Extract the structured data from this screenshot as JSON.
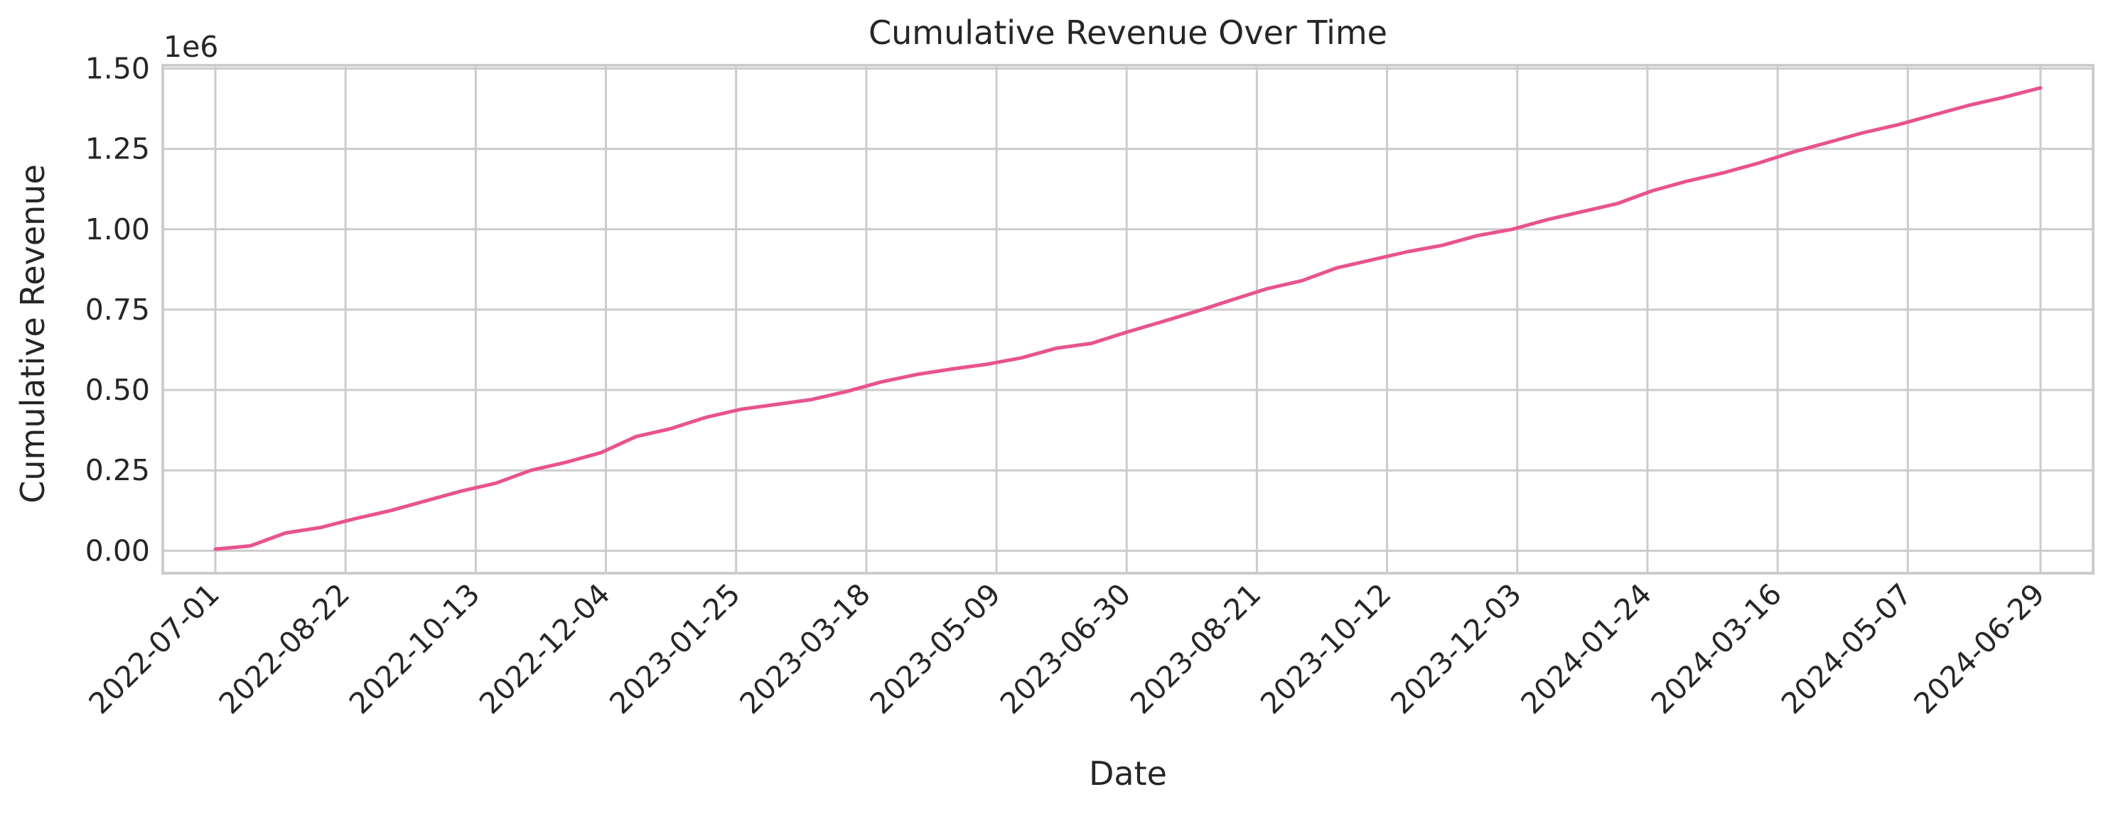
{
  "chart_data": {
    "type": "line",
    "title": "Cumulative Revenue Over Time",
    "xlabel": "Date",
    "ylabel": "Cumulative Revenue",
    "y_offset_label": "1e6",
    "y_unit_multiplier": 1000000,
    "x_tick_labels": [
      "2022-07-01",
      "2022-08-22",
      "2022-10-13",
      "2022-12-04",
      "2023-01-25",
      "2023-03-18",
      "2023-05-09",
      "2023-06-30",
      "2023-08-21",
      "2023-10-12",
      "2023-12-03",
      "2024-01-24",
      "2024-03-16",
      "2024-05-07",
      "2024-06-29"
    ],
    "y_ticks": [
      0,
      250000,
      500000,
      750000,
      1000000,
      1250000,
      1500000
    ],
    "y_tick_labels": [
      "0.00",
      "0.25",
      "0.50",
      "0.75",
      "1.00",
      "1.25",
      "1.50"
    ],
    "xlim": [
      "2022-06-10",
      "2024-07-20"
    ],
    "ylim": [
      -70000,
      1510000
    ],
    "grid": true,
    "line_color": "#e8538f",
    "series": [
      {
        "x": [
          "2022-07-01",
          "2022-07-15",
          "2022-07-29",
          "2022-08-12",
          "2022-08-26",
          "2022-09-09",
          "2022-09-23",
          "2022-10-07",
          "2022-10-21",
          "2022-11-04",
          "2022-11-18",
          "2022-12-02",
          "2022-12-16",
          "2022-12-30",
          "2023-01-13",
          "2023-01-27",
          "2023-02-10",
          "2023-02-24",
          "2023-03-10",
          "2023-03-24",
          "2023-04-07",
          "2023-04-21",
          "2023-05-05",
          "2023-05-19",
          "2023-06-02",
          "2023-06-16",
          "2023-06-30",
          "2023-07-14",
          "2023-07-28",
          "2023-08-11",
          "2023-08-25",
          "2023-09-08",
          "2023-09-22",
          "2023-10-06",
          "2023-10-20",
          "2023-11-03",
          "2023-11-17",
          "2023-12-01",
          "2023-12-15",
          "2023-12-29",
          "2024-01-12",
          "2024-01-26",
          "2024-02-09",
          "2024-02-23",
          "2024-03-08",
          "2024-03-22",
          "2024-04-05",
          "2024-04-19",
          "2024-05-03",
          "2024-05-17",
          "2024-05-31",
          "2024-06-14",
          "2024-06-29"
        ],
        "values": [
          5000,
          15000,
          55000,
          72000,
          100000,
          125000,
          155000,
          185000,
          210000,
          250000,
          275000,
          305000,
          355000,
          380000,
          415000,
          440000,
          455000,
          470000,
          495000,
          525000,
          548000,
          565000,
          580000,
          600000,
          630000,
          645000,
          680000,
          712000,
          745000,
          780000,
          815000,
          840000,
          880000,
          905000,
          930000,
          950000,
          980000,
          1000000,
          1030000,
          1055000,
          1080000,
          1120000,
          1150000,
          1175000,
          1205000,
          1240000,
          1270000,
          1300000,
          1325000,
          1355000,
          1385000,
          1410000,
          1440000
        ]
      }
    ]
  }
}
